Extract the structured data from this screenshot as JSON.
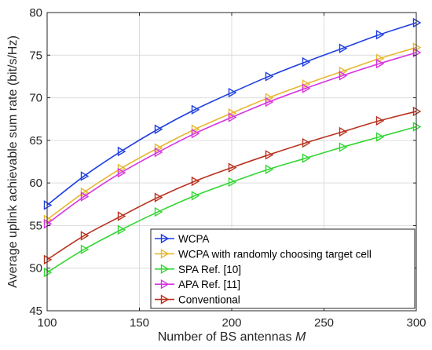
{
  "chart_data": {
    "type": "line",
    "xlabel": "Number of BS antennas ",
    "xlabel_var": "M",
    "ylabel": "Average uplink achievable sum rate (bit/s/Hz)",
    "xlim": [
      100,
      300
    ],
    "ylim": [
      45,
      80
    ],
    "xticks": [
      100,
      150,
      200,
      250,
      300
    ],
    "yticks": [
      45,
      50,
      55,
      60,
      65,
      70,
      75,
      80
    ],
    "grid": true,
    "legend_position": "bottom-right",
    "x": [
      100,
      120,
      140,
      160,
      180,
      200,
      220,
      240,
      260,
      280,
      300
    ],
    "series": [
      {
        "name": "WCPA",
        "color": "#1f3fe0",
        "marker": "triangle-right",
        "values": [
          57.4,
          60.8,
          63.7,
          66.3,
          68.6,
          70.6,
          72.5,
          74.2,
          75.8,
          77.4,
          78.8
        ]
      },
      {
        "name": "WCPA with randomly choosing target cell",
        "color": "#e6b830",
        "marker": "triangle-right",
        "values": [
          55.7,
          58.9,
          61.7,
          64.1,
          66.3,
          68.2,
          70.0,
          71.6,
          73.1,
          74.6,
          75.9
        ]
      },
      {
        "name": "SPA  Ref. [10]",
        "color": "#33d633",
        "marker": "triangle-right",
        "values": [
          49.5,
          52.2,
          54.5,
          56.6,
          58.5,
          60.1,
          61.6,
          62.9,
          64.2,
          65.4,
          66.6
        ]
      },
      {
        "name": "APA  Ref. [11]",
        "color": "#d633e0",
        "marker": "triangle-right",
        "values": [
          55.2,
          58.4,
          61.2,
          63.6,
          65.8,
          67.7,
          69.5,
          71.1,
          72.6,
          74.0,
          75.3
        ]
      },
      {
        "name": "Conventional",
        "color": "#b8321f",
        "marker": "triangle-right",
        "values": [
          51.0,
          53.8,
          56.1,
          58.3,
          60.2,
          61.8,
          63.3,
          64.7,
          66.0,
          67.3,
          68.4
        ]
      }
    ]
  }
}
